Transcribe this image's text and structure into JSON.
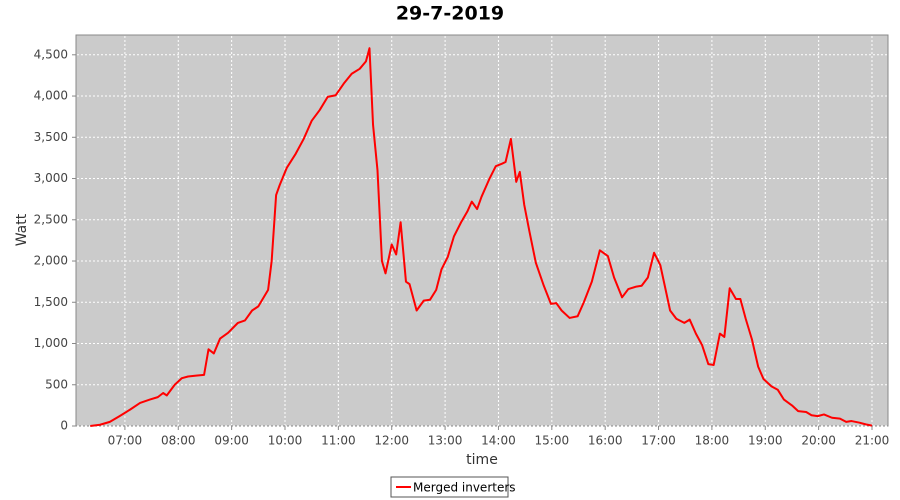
{
  "chart_data": {
    "type": "line",
    "title": "29-7-2019",
    "x_label": "time",
    "y_label": "Watt",
    "x": [
      "06:21",
      "06:32",
      "06:43",
      "06:54",
      "07:06",
      "07:17",
      "07:28",
      "07:37",
      "07:43",
      "07:47",
      "07:56",
      "08:04",
      "08:11",
      "08:20",
      "08:29",
      "08:34",
      "08:40",
      "08:47",
      "08:56",
      "09:07",
      "09:15",
      "09:23",
      "09:30",
      "09:36",
      "09:41",
      "09:45",
      "09:50",
      "09:54",
      "10:02",
      "10:12",
      "10:21",
      "10:30",
      "10:39",
      "10:48",
      "10:57",
      "11:06",
      "11:15",
      "11:24",
      "11:31",
      "11:35",
      "11:39",
      "11:44",
      "11:49",
      "11:53",
      "12:00",
      "12:05",
      "12:10",
      "12:16",
      "12:20",
      "12:28",
      "12:36",
      "12:43",
      "12:50",
      "12:56",
      "13:03",
      "13:10",
      "13:18",
      "13:25",
      "13:30",
      "13:36",
      "13:41",
      "13:50",
      "13:57",
      "14:04",
      "14:08",
      "14:14",
      "14:20",
      "14:24",
      "14:29",
      "14:35",
      "14:42",
      "14:51",
      "14:59",
      "15:05",
      "15:11",
      "15:20",
      "15:29",
      "15:36",
      "15:45",
      "15:54",
      "16:03",
      "16:10",
      "16:19",
      "16:26",
      "16:35",
      "16:41",
      "16:48",
      "16:55",
      "17:02",
      "17:07",
      "17:13",
      "17:20",
      "17:29",
      "17:35",
      "17:42",
      "17:49",
      "17:56",
      "18:02",
      "18:09",
      "18:14",
      "18:20",
      "18:27",
      "18:32",
      "18:38",
      "18:45",
      "18:52",
      "18:58",
      "19:07",
      "19:14",
      "19:21",
      "19:30",
      "19:37",
      "19:46",
      "19:52",
      "19:59",
      "20:06",
      "20:15",
      "20:24",
      "20:31",
      "20:37",
      "20:46",
      "20:53",
      "21:00"
    ],
    "series": [
      {
        "name": "Merged inverters",
        "color": "#ff0000",
        "values": [
          0,
          15,
          50,
          120,
          200,
          280,
          320,
          350,
          400,
          370,
          500,
          580,
          600,
          610,
          620,
          930,
          880,
          1060,
          1130,
          1250,
          1280,
          1400,
          1450,
          1560,
          1650,
          2000,
          2800,
          2920,
          3130,
          3300,
          3480,
          3700,
          3830,
          3990,
          4010,
          4150,
          4270,
          4330,
          4420,
          4580,
          3650,
          3100,
          2000,
          1850,
          2200,
          2080,
          2470,
          1750,
          1720,
          1400,
          1520,
          1530,
          1650,
          1900,
          2050,
          2300,
          2470,
          2600,
          2720,
          2630,
          2780,
          3000,
          3150,
          3180,
          3200,
          3480,
          2960,
          3080,
          2680,
          2350,
          1980,
          1700,
          1480,
          1490,
          1400,
          1310,
          1330,
          1500,
          1750,
          2130,
          2060,
          1800,
          1560,
          1660,
          1690,
          1700,
          1800,
          2100,
          1950,
          1700,
          1400,
          1300,
          1250,
          1290,
          1120,
          980,
          750,
          740,
          1120,
          1080,
          1670,
          1540,
          1540,
          1300,
          1050,
          720,
          570,
          480,
          440,
          320,
          250,
          180,
          170,
          130,
          120,
          140,
          100,
          90,
          50,
          60,
          40,
          20,
          5
        ]
      }
    ],
    "xlim": [
      "06:05",
      "21:18"
    ],
    "xticks": [
      "07:00",
      "08:00",
      "09:00",
      "10:00",
      "11:00",
      "12:00",
      "13:00",
      "14:00",
      "15:00",
      "16:00",
      "17:00",
      "18:00",
      "19:00",
      "20:00",
      "21:00"
    ],
    "ylim": [
      0,
      4740
    ],
    "yticks": [
      0,
      500,
      {
        "value": 1000,
        "label": "1,000"
      },
      {
        "value": 1500,
        "label": "1,500"
      },
      {
        "value": 2000,
        "label": "2,000"
      },
      {
        "value": 2500,
        "label": "2,500"
      },
      {
        "value": 3000,
        "label": "3,000"
      },
      {
        "value": 3500,
        "label": "3,500"
      },
      {
        "value": 4000,
        "label": "4,000"
      },
      {
        "value": 4500,
        "label": "4,500"
      }
    ],
    "grid": true,
    "legend": "bottom"
  }
}
